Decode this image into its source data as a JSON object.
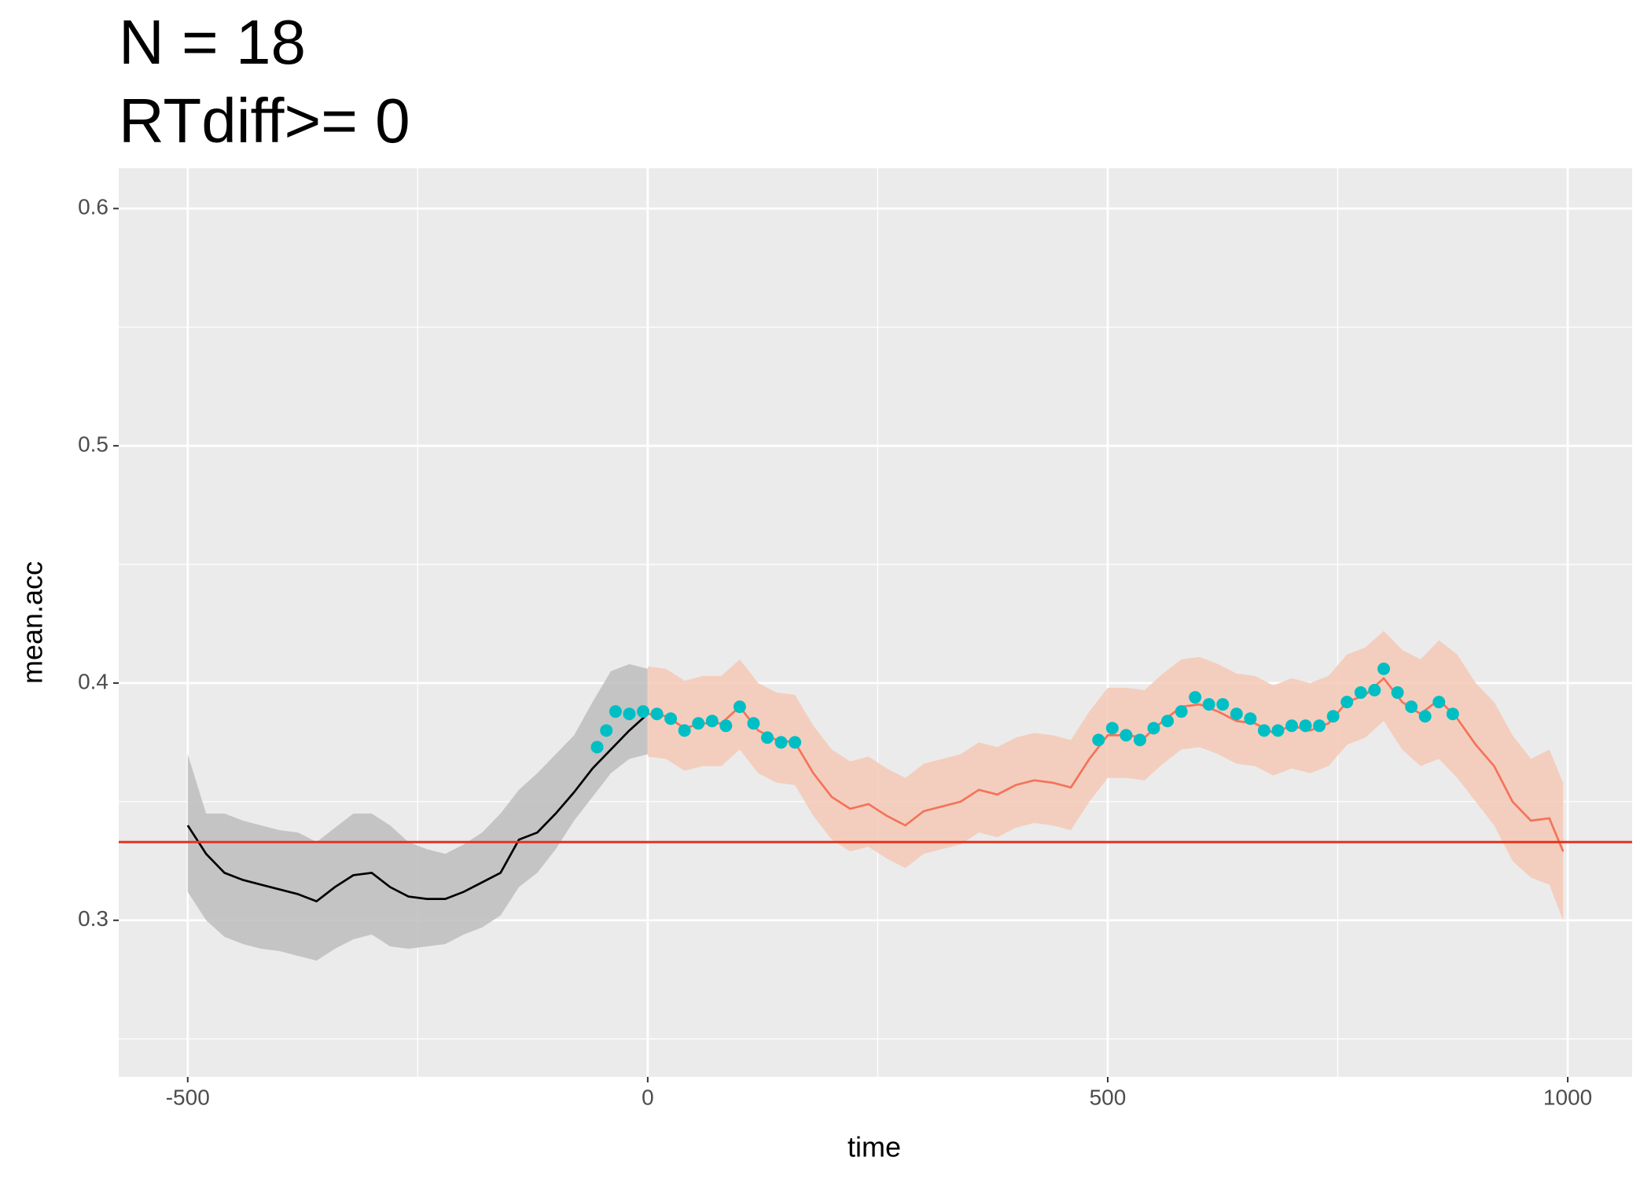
{
  "chart_data": {
    "type": "ribbon-line",
    "title": "N = 18",
    "subtitle": "RTdiff>= 0",
    "x_label": "time",
    "y_label": "mean.acc",
    "xlim": [
      -575,
      1070
    ],
    "ylim": [
      0.234,
      0.617
    ],
    "xticks": [
      -500,
      0,
      500,
      1000
    ],
    "x_minor_ticks": [
      -250,
      250,
      750
    ],
    "yticks": [
      0.3,
      0.4,
      0.5,
      0.6
    ],
    "y_minor_ticks": [
      0.25,
      0.35,
      0.45,
      0.55
    ],
    "grid": true,
    "series": [
      {
        "color": "#000000",
        "fill": "#bdbdbd",
        "x": [
          -500,
          -480,
          -460,
          -440,
          -420,
          -400,
          -380,
          -360,
          -340,
          -320,
          -300,
          -280,
          -260,
          -240,
          -220,
          -200,
          -180,
          -160,
          -140,
          -120,
          -100,
          -80,
          -60,
          -40,
          -20,
          0
        ],
        "values": [
          0.34,
          0.328,
          0.32,
          0.317,
          0.315,
          0.313,
          0.311,
          0.308,
          0.314,
          0.319,
          0.32,
          0.314,
          0.31,
          0.309,
          0.309,
          0.312,
          0.316,
          0.32,
          0.334,
          0.337,
          0.345,
          0.354,
          0.364,
          0.372,
          0.38,
          0.387
        ],
        "lower": [
          0.312,
          0.3,
          0.293,
          0.29,
          0.288,
          0.287,
          0.285,
          0.283,
          0.288,
          0.292,
          0.294,
          0.289,
          0.288,
          0.289,
          0.29,
          0.294,
          0.297,
          0.302,
          0.314,
          0.32,
          0.33,
          0.342,
          0.352,
          0.362,
          0.368,
          0.37
        ],
        "upper": [
          0.37,
          0.345,
          0.345,
          0.342,
          0.34,
          0.338,
          0.337,
          0.333,
          0.339,
          0.345,
          0.345,
          0.34,
          0.333,
          0.33,
          0.328,
          0.332,
          0.337,
          0.345,
          0.355,
          0.362,
          0.37,
          0.378,
          0.392,
          0.405,
          0.408,
          0.406
        ]
      },
      {
        "color": "#f4735a",
        "fill": "#f5c9b6",
        "x": [
          0,
          20,
          40,
          60,
          80,
          100,
          120,
          140,
          160,
          180,
          200,
          220,
          240,
          260,
          280,
          300,
          320,
          340,
          360,
          380,
          400,
          420,
          440,
          460,
          480,
          500,
          520,
          540,
          560,
          580,
          600,
          620,
          640,
          660,
          680,
          700,
          720,
          740,
          760,
          780,
          800,
          820,
          840,
          860,
          880,
          900,
          920,
          940,
          960,
          980,
          995
        ],
        "values": [
          0.387,
          0.386,
          0.381,
          0.383,
          0.383,
          0.39,
          0.38,
          0.376,
          0.375,
          0.362,
          0.352,
          0.347,
          0.349,
          0.344,
          0.34,
          0.346,
          0.348,
          0.35,
          0.355,
          0.353,
          0.357,
          0.359,
          0.358,
          0.356,
          0.368,
          0.378,
          0.378,
          0.377,
          0.384,
          0.39,
          0.391,
          0.388,
          0.384,
          0.383,
          0.379,
          0.382,
          0.38,
          0.383,
          0.392,
          0.395,
          0.402,
          0.392,
          0.387,
          0.393,
          0.385,
          0.374,
          0.365,
          0.35,
          0.342,
          0.343,
          0.329
        ],
        "lower": [
          0.369,
          0.368,
          0.363,
          0.365,
          0.365,
          0.372,
          0.362,
          0.358,
          0.357,
          0.344,
          0.334,
          0.329,
          0.331,
          0.326,
          0.322,
          0.328,
          0.33,
          0.332,
          0.337,
          0.335,
          0.339,
          0.341,
          0.34,
          0.338,
          0.35,
          0.36,
          0.36,
          0.359,
          0.366,
          0.372,
          0.373,
          0.37,
          0.366,
          0.365,
          0.361,
          0.364,
          0.362,
          0.365,
          0.374,
          0.377,
          0.384,
          0.372,
          0.365,
          0.368,
          0.36,
          0.35,
          0.34,
          0.325,
          0.318,
          0.315,
          0.3
        ],
        "upper": [
          0.407,
          0.406,
          0.401,
          0.403,
          0.403,
          0.41,
          0.4,
          0.396,
          0.395,
          0.382,
          0.372,
          0.367,
          0.369,
          0.364,
          0.36,
          0.366,
          0.368,
          0.37,
          0.375,
          0.373,
          0.377,
          0.379,
          0.378,
          0.376,
          0.388,
          0.398,
          0.398,
          0.397,
          0.404,
          0.41,
          0.411,
          0.408,
          0.404,
          0.403,
          0.399,
          0.402,
          0.4,
          0.403,
          0.412,
          0.415,
          0.422,
          0.414,
          0.41,
          0.418,
          0.412,
          0.4,
          0.392,
          0.378,
          0.368,
          0.372,
          0.358
        ]
      }
    ],
    "points": {
      "color": "#00bfc4",
      "x": [
        -55,
        -45,
        -35,
        -20,
        -5,
        10,
        25,
        40,
        55,
        70,
        85,
        100,
        115,
        130,
        145,
        160,
        490,
        505,
        520,
        535,
        550,
        565,
        580,
        595,
        610,
        625,
        640,
        655,
        670,
        685,
        700,
        715,
        730,
        745,
        760,
        775,
        790,
        800,
        815,
        830,
        845,
        860,
        875
      ],
      "values": [
        0.373,
        0.38,
        0.388,
        0.387,
        0.388,
        0.387,
        0.385,
        0.38,
        0.383,
        0.384,
        0.382,
        0.39,
        0.383,
        0.377,
        0.375,
        0.375,
        0.376,
        0.381,
        0.378,
        0.376,
        0.381,
        0.384,
        0.388,
        0.394,
        0.391,
        0.391,
        0.387,
        0.385,
        0.38,
        0.38,
        0.382,
        0.382,
        0.382,
        0.386,
        0.392,
        0.396,
        0.397,
        0.406,
        0.396,
        0.39,
        0.386,
        0.392,
        0.387
      ]
    },
    "hline": {
      "value": 0.333,
      "color": "#e8321e"
    }
  }
}
